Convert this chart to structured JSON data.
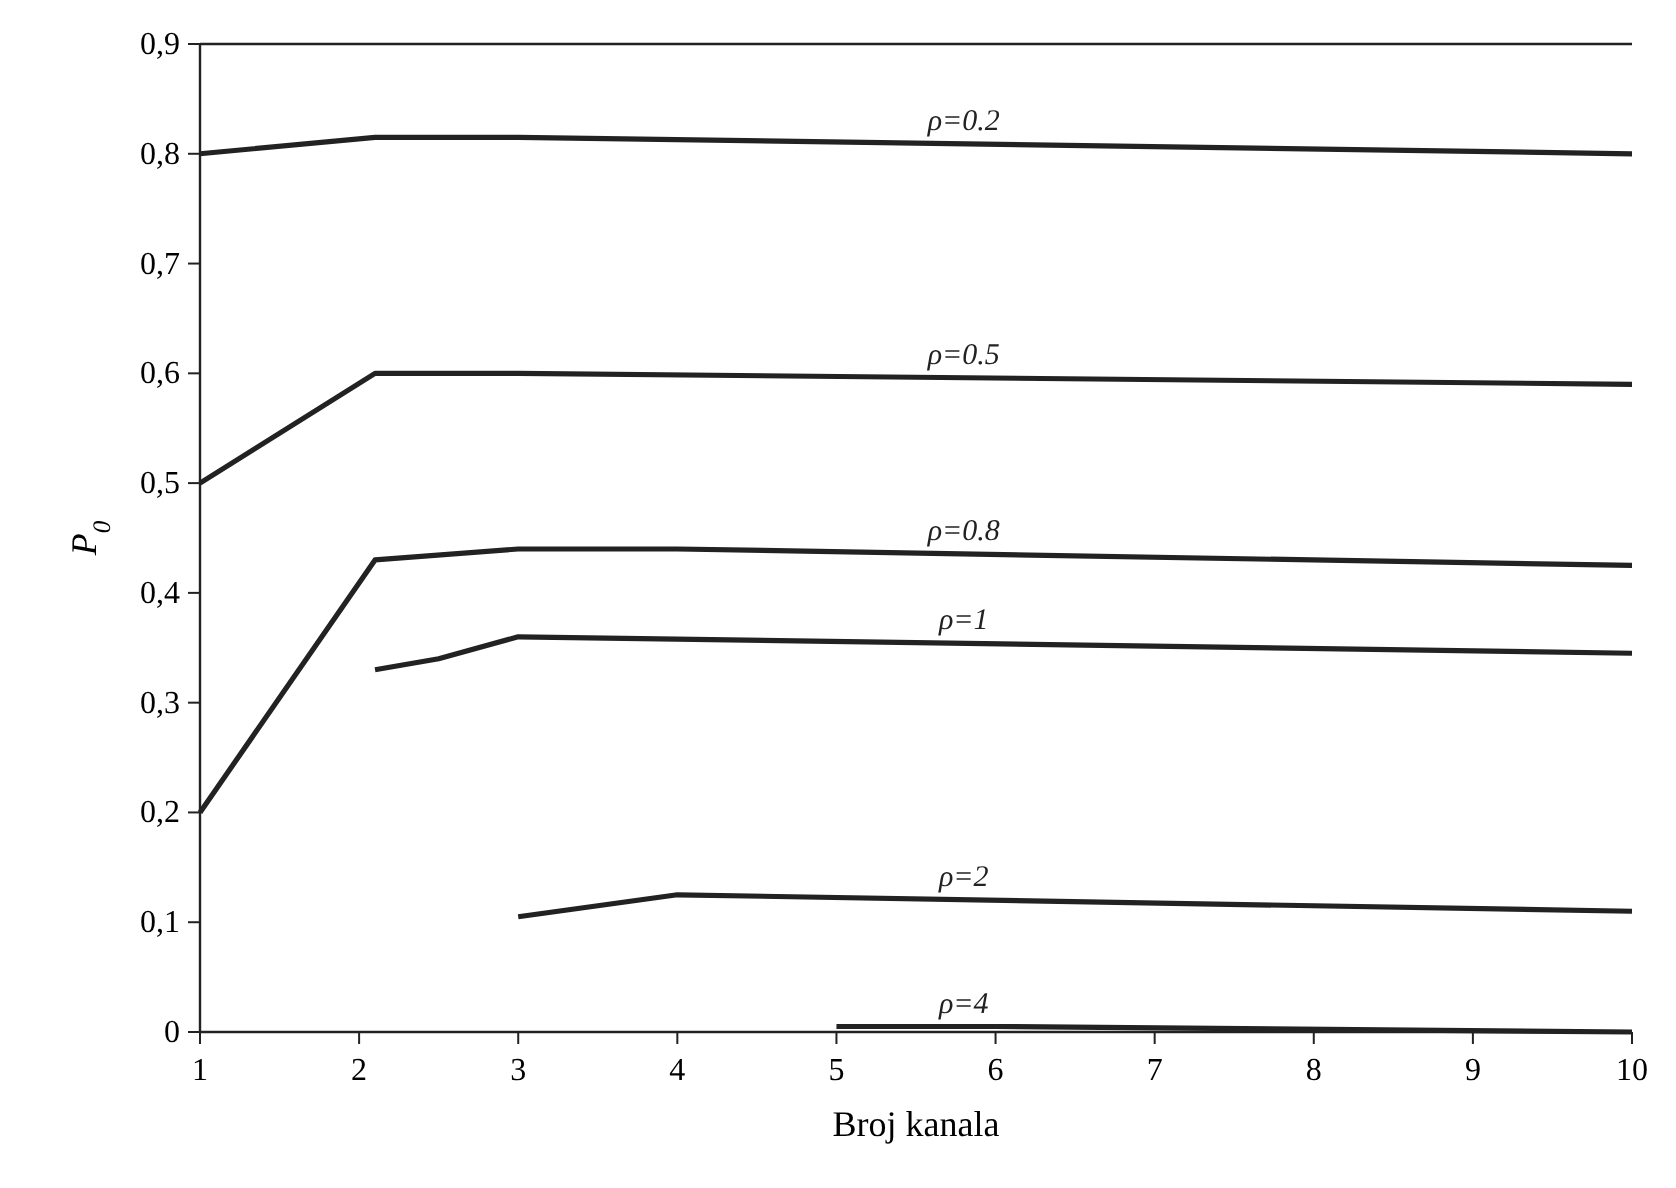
{
  "chart_data": {
    "type": "line",
    "xlabel": "Broj kanala",
    "ylabel": "P$_{0}$",
    "xlim": [
      1,
      10
    ],
    "xticks": [
      1,
      2,
      3,
      4,
      5,
      6,
      7,
      8,
      9,
      10
    ],
    "ylim": [
      0,
      0.9
    ],
    "yticks": [
      {
        "value": 0,
        "label": "0"
      },
      {
        "value": 0.1,
        "label": "0,1"
      },
      {
        "value": 0.2,
        "label": "0,2"
      },
      {
        "value": 0.3,
        "label": "0,3"
      },
      {
        "value": 0.4,
        "label": "0,4"
      },
      {
        "value": 0.5,
        "label": "0,5"
      },
      {
        "value": 0.6,
        "label": "0,6"
      },
      {
        "value": 0.7,
        "label": "0,7"
      },
      {
        "value": 0.8,
        "label": "0,8"
      },
      {
        "value": 0.9,
        "label": "0,9"
      }
    ],
    "marker": "none",
    "line_style": "solid",
    "series": [
      {
        "name": "ρ=0.2",
        "color": "#222222",
        "x": [
          1,
          2.1,
          3,
          10
        ],
        "values": [
          0.8,
          0.815,
          0.815,
          0.8
        ]
      },
      {
        "name": "ρ=0.5",
        "color": "#222222",
        "x": [
          1,
          2.1,
          3,
          10
        ],
        "values": [
          0.5,
          0.6,
          0.6,
          0.59
        ]
      },
      {
        "name": "ρ=0.8",
        "color": "#222222",
        "x": [
          1,
          2.1,
          3,
          4,
          10
        ],
        "values": [
          0.2,
          0.43,
          0.44,
          0.44,
          0.425
        ]
      },
      {
        "name": "ρ=1",
        "color": "#222222",
        "x": [
          2.1,
          2.5,
          3,
          10
        ],
        "values": [
          0.33,
          0.34,
          0.36,
          0.345
        ]
      },
      {
        "name": "ρ=2",
        "color": "#222222",
        "x": [
          3,
          4,
          10
        ],
        "values": [
          0.105,
          0.125,
          0.11
        ]
      },
      {
        "name": "ρ=4",
        "color": "#222222",
        "x": [
          5,
          6,
          10
        ],
        "values": [
          0.005,
          0.005,
          0
        ]
      }
    ]
  }
}
